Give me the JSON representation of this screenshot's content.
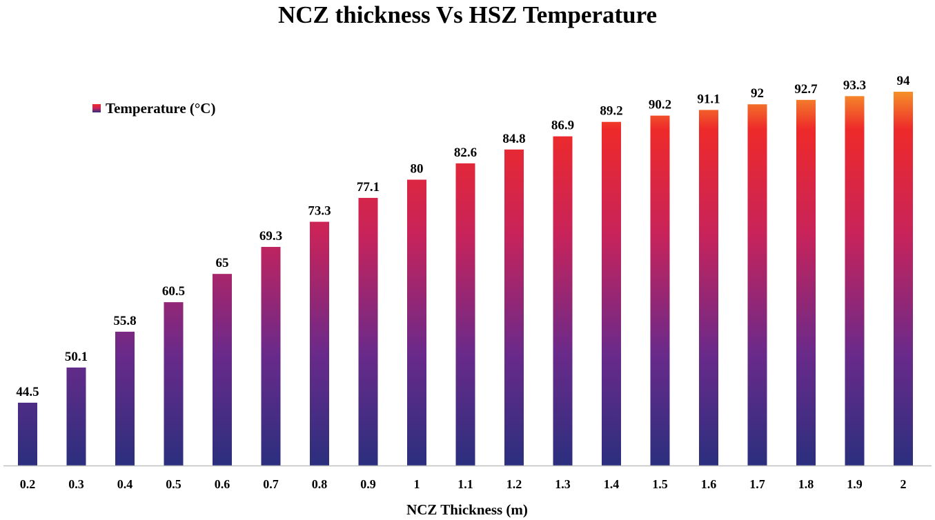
{
  "chart_data": {
    "type": "bar",
    "title": "NCZ thickness Vs HSZ Temperature",
    "xlabel": "NCZ Thickness (m)",
    "ylabel": "",
    "categories": [
      "0.2",
      "0.3",
      "0.4",
      "0.5",
      "0.6",
      "0.7",
      "0.8",
      "0.9",
      "1",
      "1.1",
      "1.2",
      "1.3",
      "1.4",
      "1.5",
      "1.6",
      "1.7",
      "1.8",
      "1.9",
      "2"
    ],
    "series": [
      {
        "name": "Temperature (°C)",
        "values": [
          44.5,
          50.1,
          55.8,
          60.5,
          65,
          69.3,
          73.3,
          77.1,
          80,
          82.6,
          84.8,
          86.9,
          89.2,
          90.2,
          91.1,
          92,
          92.7,
          93.3,
          94
        ],
        "data_labels": [
          "44.5",
          "50.1",
          "55.8",
          "60.5",
          "65",
          "69.3",
          "73.3",
          "77.1",
          "80",
          "82.6",
          "84.8",
          "86.9",
          "89.2",
          "90.2",
          "91.1",
          "92",
          "92.7",
          "93.3",
          "94"
        ]
      }
    ],
    "ylim": [
      34.5,
      94
    ],
    "grid": false,
    "legend_position": "top-left",
    "colors": {
      "bar_top": "#f5902a",
      "bar_upper": "#ee2a2a",
      "bar_middle": "#c8235a",
      "bar_lower": "#6a2a8a",
      "bar_bottom": "#2b2f7e",
      "axis": "#bfbfbf"
    }
  }
}
